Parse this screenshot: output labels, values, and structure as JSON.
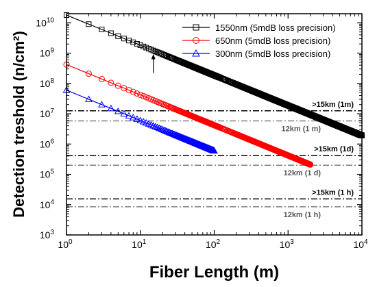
{
  "chart_data": {
    "type": "scatter",
    "xlabel": "Fiber Length (m)",
    "ylabel": "Detection treshold (n/cm²)",
    "x_scale": "log",
    "y_scale": "log",
    "xlim": [
      1,
      10000
    ],
    "ylim": [
      1000,
      20000000000
    ],
    "x_ticks": [
      {
        "value": 1,
        "base": "10",
        "exp": "0"
      },
      {
        "value": 10,
        "base": "10",
        "exp": "1"
      },
      {
        "value": 100,
        "base": "10",
        "exp": "2"
      },
      {
        "value": 1000,
        "base": "10",
        "exp": "3"
      },
      {
        "value": 10000,
        "base": "10",
        "exp": "4"
      }
    ],
    "y_ticks": [
      {
        "value": 1000,
        "base": "10",
        "exp": "3"
      },
      {
        "value": 10000,
        "base": "10",
        "exp": "4"
      },
      {
        "value": 100000,
        "base": "10",
        "exp": "5"
      },
      {
        "value": 1000000,
        "base": "10",
        "exp": "6"
      },
      {
        "value": 10000000,
        "base": "10",
        "exp": "7"
      },
      {
        "value": 100000000,
        "base": "10",
        "exp": "8"
      },
      {
        "value": 1000000000,
        "base": "10",
        "exp": "9"
      },
      {
        "value": 10000000000,
        "base": "10",
        "exp": "10"
      }
    ],
    "series": [
      {
        "name": "1550nm (5mdB loss precision)",
        "color": "#000000",
        "marker": "square",
        "x_start": 1,
        "x_end": 10000,
        "y_start": 18000000000,
        "y_end": 1900000
      },
      {
        "name": "650nm (5mdB loss precision)",
        "color": "#ff0000",
        "marker": "circle",
        "x_start": 1,
        "x_end": 2000,
        "y_start": 420000000,
        "y_end": 210000
      },
      {
        "name": "300nm (5mdB loss precision)",
        "color": "#0000ff",
        "marker": "triangle",
        "x_start": 1,
        "x_end": 100,
        "y_start": 60000000,
        "y_end": 600000
      }
    ],
    "reference_lines": [
      {
        "label": ">15km (1m)",
        "y": 12500000,
        "style": "dash-dot",
        "color": "#000000"
      },
      {
        "label": "12km (1 m)",
        "y": 5800000,
        "style": "dash-dot",
        "color": "#7f7f7f"
      },
      {
        "label": ">15km (1d)",
        "y": 420000,
        "style": "dash-dot",
        "color": "#000000"
      },
      {
        "label": "12km (1 d)",
        "y": 200000,
        "style": "dash-dot",
        "color": "#7f7f7f"
      },
      {
        "label": ">15km (1 h)",
        "y": 15500,
        "style": "dash-dot",
        "color": "#000000"
      },
      {
        "label": "12km (1 h)",
        "y": 8500,
        "style": "dash-dot",
        "color": "#7f7f7f"
      }
    ],
    "annotation_arrow": {
      "x": 15,
      "y_from": 220000000,
      "y_to": 950000000
    },
    "grid": false,
    "legend_position": "top-right"
  }
}
